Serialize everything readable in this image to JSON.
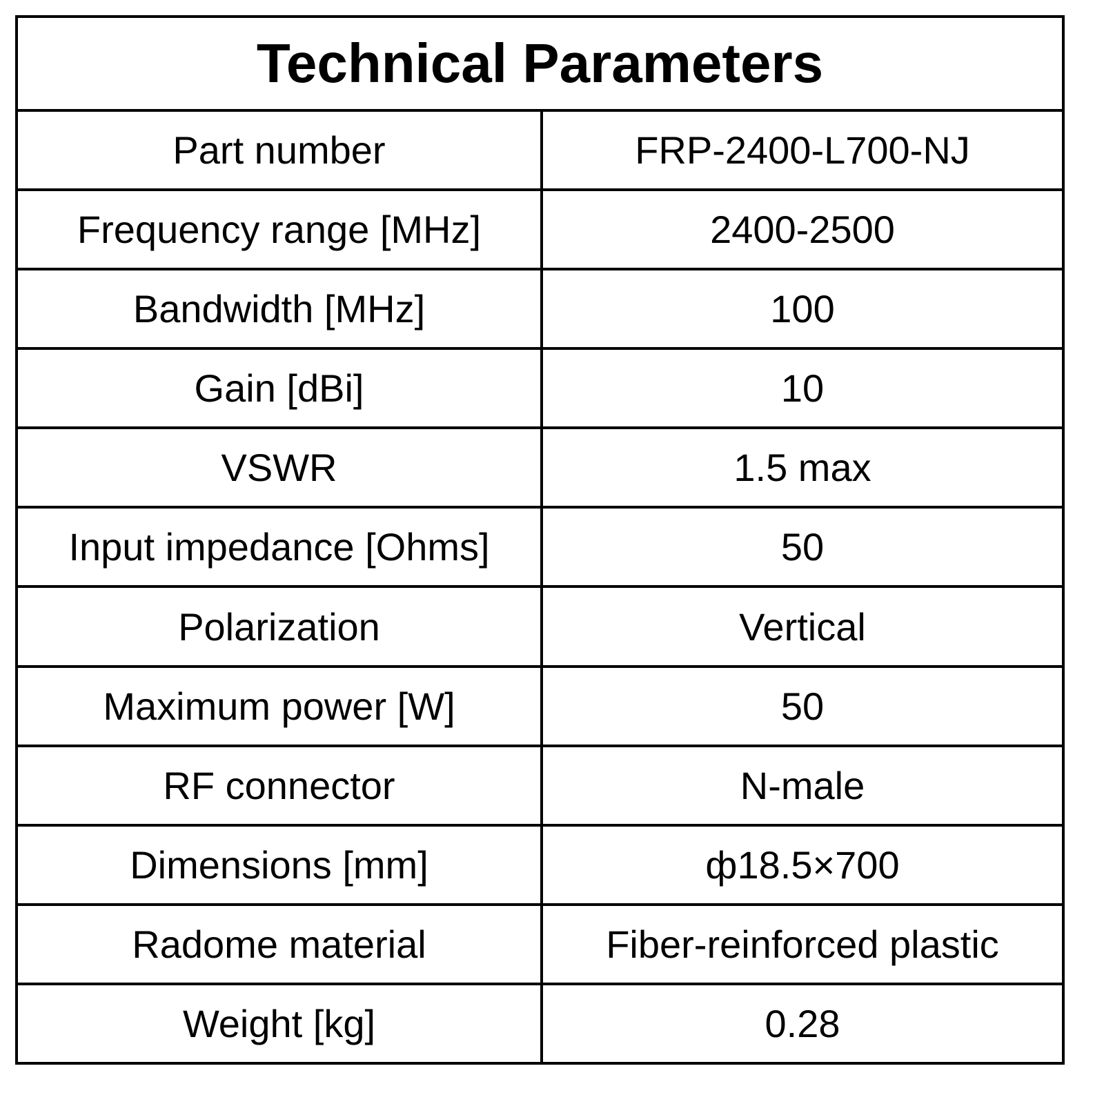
{
  "table": {
    "title": "Technical Parameters",
    "rows": [
      [
        "Part number",
        "FRP-2400-L700-NJ"
      ],
      [
        "Frequency range [MHz]",
        "2400-2500"
      ],
      [
        "Bandwidth [MHz]",
        "100"
      ],
      [
        "Gain [dBi]",
        "10"
      ],
      [
        "VSWR",
        "1.5 max"
      ],
      [
        "Input impedance [Ohms]",
        "50"
      ],
      [
        "Polarization",
        "Vertical"
      ],
      [
        "Maximum power [W]",
        "50"
      ],
      [
        "RF connector",
        "N-male"
      ],
      [
        "Dimensions [mm]",
        "ф18.5×700"
      ],
      [
        "Radome material",
        "Fiber-reinforced plastic"
      ],
      [
        "Weight [kg]",
        "0.28"
      ]
    ]
  }
}
